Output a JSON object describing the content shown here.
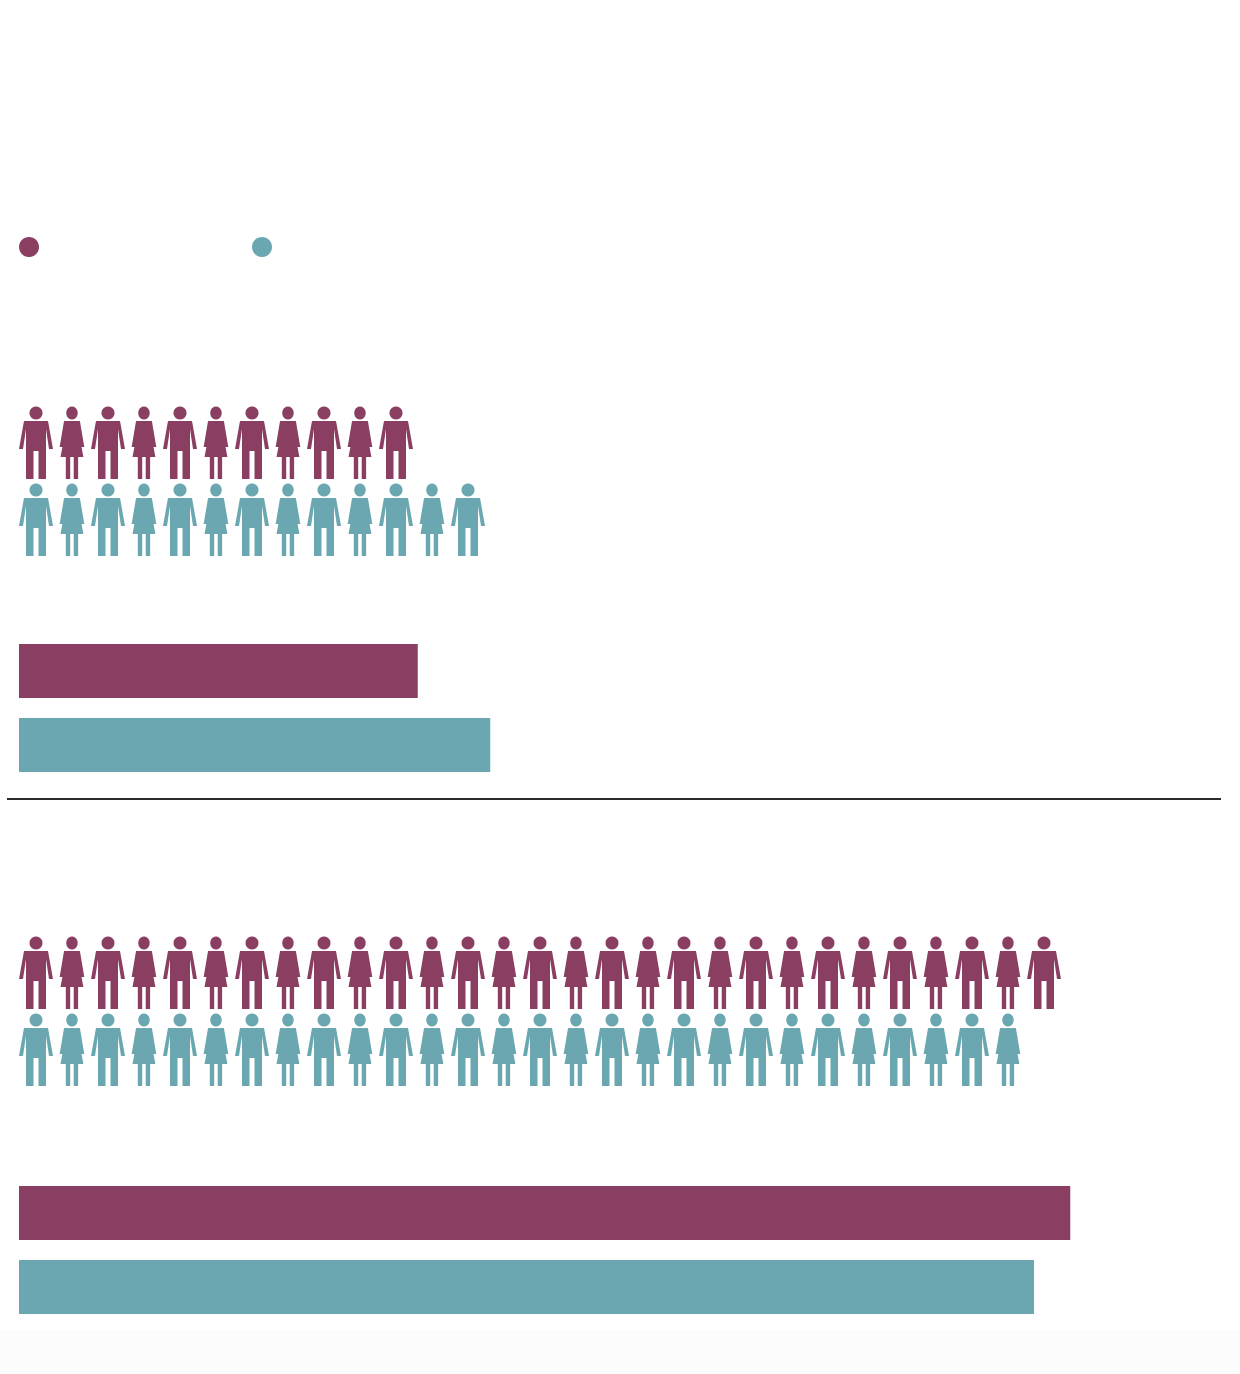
{
  "colors": {
    "series_a": "#8a3e62",
    "series_b": "#6aa7b0",
    "divider": "#2b2b2b"
  },
  "legend": [
    {
      "name": "",
      "color": "#8a3e62"
    },
    {
      "name": "",
      "color": "#6aa7b0"
    }
  ],
  "chart_data": [
    {
      "type": "bar",
      "subtype": "pictograph-with-bars",
      "title": "",
      "categories": [
        "",
        ""
      ],
      "values": [
        11,
        13
      ],
      "bar_scale_note": "",
      "icon_counts": [
        11,
        13
      ]
    },
    {
      "type": "bar",
      "subtype": "pictograph-with-bars",
      "title": "",
      "categories": [
        "",
        ""
      ],
      "values": [
        29,
        28
      ],
      "icon_counts": [
        29,
        28
      ]
    }
  ]
}
